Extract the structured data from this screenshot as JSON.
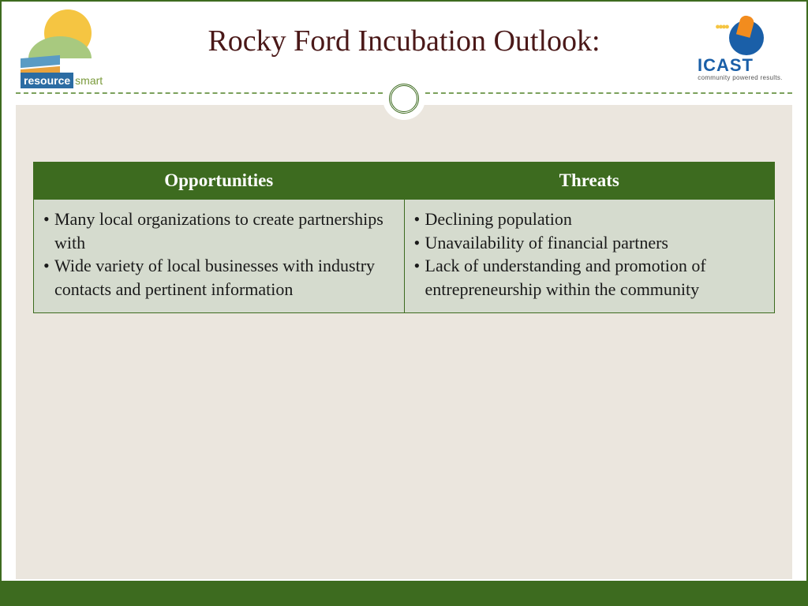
{
  "title": "Rocky Ford Incubation Outlook:",
  "logos": {
    "left": {
      "label1": "resource",
      "label2": "smart"
    },
    "right": {
      "name": "ICAST",
      "tagline": "community powered results."
    }
  },
  "table": {
    "headers": [
      "Opportunities",
      "Threats"
    ],
    "opportunities": [
      "Many local organizations to create partnerships with",
      "Wide variety of local businesses with industry contacts and pertinent information"
    ],
    "threats": [
      "Declining population",
      "Unavailability of financial partners",
      "Lack of understanding and promotion of entrepreneurship  within the community"
    ]
  },
  "colors": {
    "border": "#3d6b1f",
    "header_bg": "#3d6b1f",
    "header_text": "#ffffff",
    "cell_bg": "#d5dbce",
    "body_bg": "#ebe6de",
    "title_color": "#4a1818"
  }
}
